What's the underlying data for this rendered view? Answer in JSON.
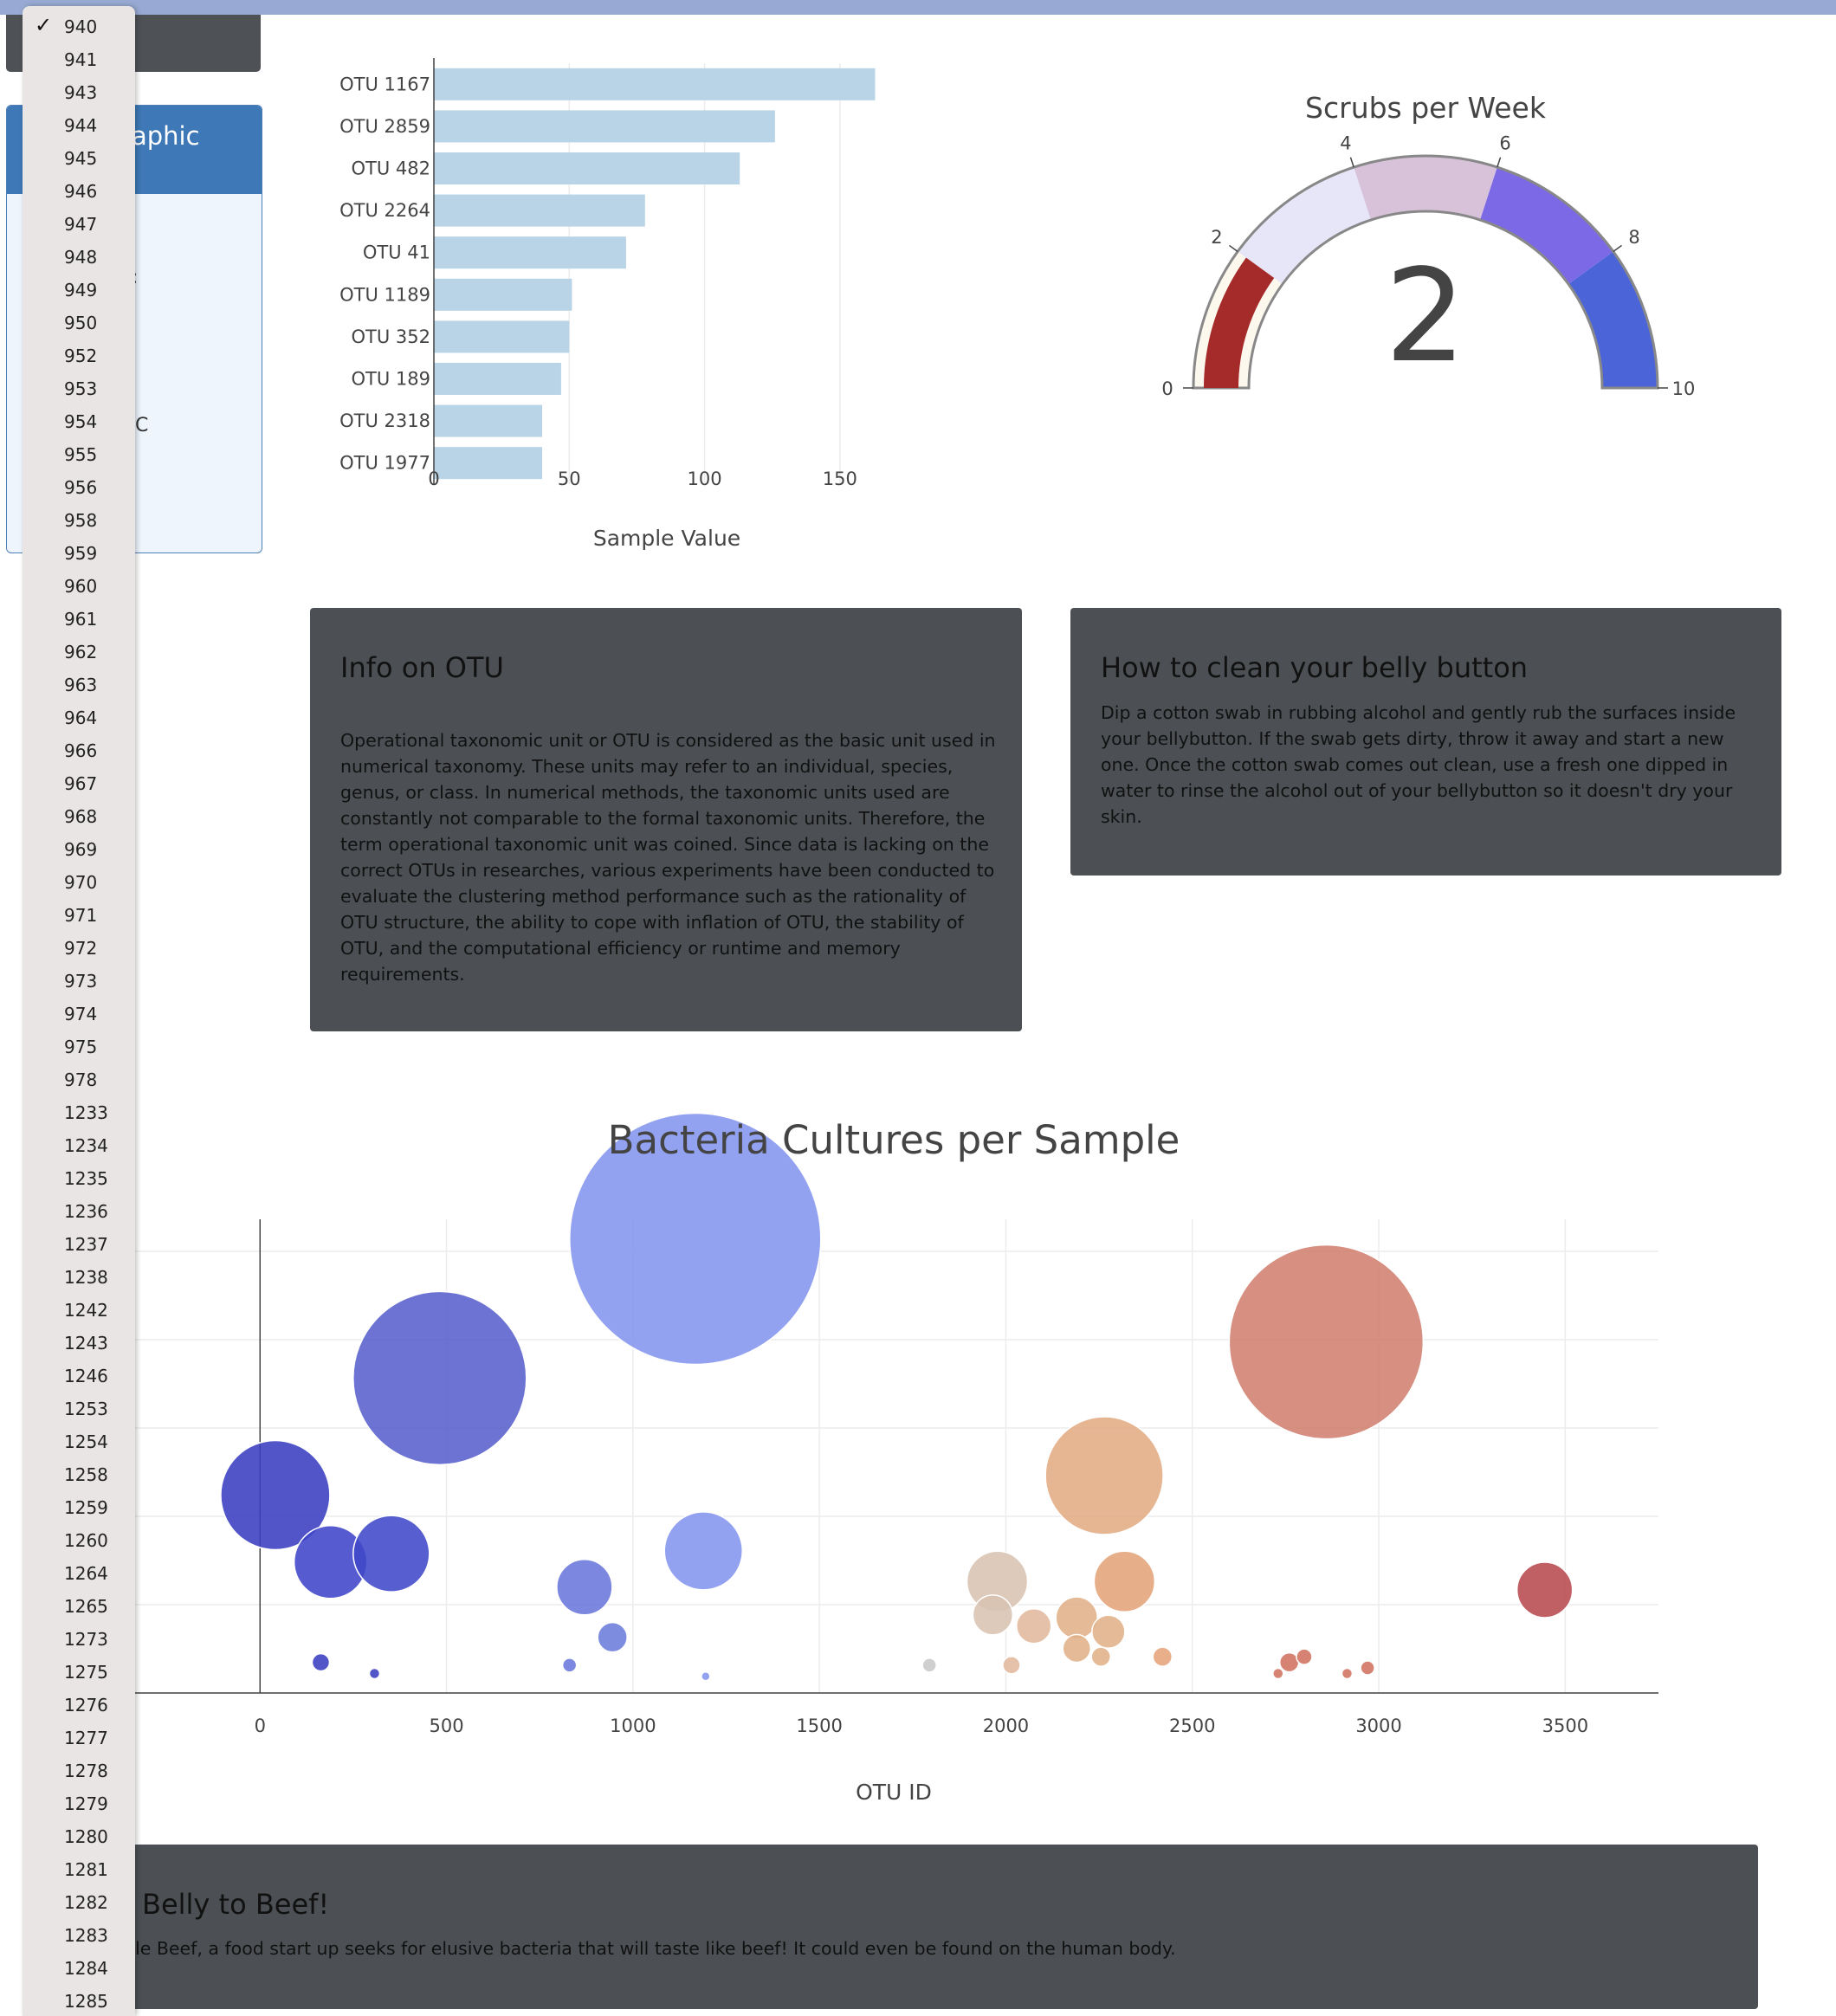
{
  "demographic": {
    "title_fragment": "aphic",
    "fragments": [
      ":",
      "C"
    ]
  },
  "dropdown": {
    "selected": "940",
    "options": [
      "940",
      "941",
      "943",
      "944",
      "945",
      "946",
      "947",
      "948",
      "949",
      "950",
      "952",
      "953",
      "954",
      "955",
      "956",
      "958",
      "959",
      "960",
      "961",
      "962",
      "963",
      "964",
      "966",
      "967",
      "968",
      "969",
      "970",
      "971",
      "972",
      "973",
      "974",
      "975",
      "978",
      "1233",
      "1234",
      "1235",
      "1236",
      "1237",
      "1238",
      "1242",
      "1243",
      "1246",
      "1253",
      "1254",
      "1258",
      "1259",
      "1260",
      "1264",
      "1265",
      "1273",
      "1275",
      "1276",
      "1277",
      "1278",
      "1279",
      "1280",
      "1281",
      "1282",
      "1283",
      "1284",
      "1285"
    ]
  },
  "bar_chart": {
    "xlabel": "Sample Value"
  },
  "gauge": {
    "title": "Scrubs per Week",
    "value_text": "2"
  },
  "bubble_chart": {
    "title": "Bacteria Cultures per Sample",
    "xlabel": "OTU ID"
  },
  "info_card": {
    "title": "Info on OTU",
    "body": "Operational taxonomic unit or OTU is considered as the basic unit used in numerical taxonomy. These units may refer to an individual, species, genus, or class. In numerical methods, the taxonomic units used are constantly not comparable to the formal taxonomic units. Therefore, the term operational taxonomic unit was coined. Since data is lacking on the correct OTUs in researches, various experiments have been conducted to evaluate the clustering method performance such as the rationality of OTU structure, the ability to cope with inflation of OTU, the stability of OTU, and the computational efficiency or runtime and memory requirements."
  },
  "clean_card": {
    "title": "How to clean your belly button",
    "body": "Dip a cotton swab in rubbing alcohol and gently rub the surfaces inside your bellybutton. If the swab gets dirty, throw it away and start a new one. Once the cotton swab comes out clean, use a fresh one dipped in water to rinse the alcohol out of your bellybutton so it doesn't dry your skin."
  },
  "bottom_card": {
    "title": "Belly to Beef!",
    "body": "le Beef, a food start up seeks for elusive bacteria that will taste like beef! It could even be found on the human body."
  },
  "chart_data": [
    {
      "type": "bar",
      "orientation": "horizontal",
      "categories": [
        "OTU 1167",
        "OTU 2859",
        "OTU 482",
        "OTU 2264",
        "OTU 41",
        "OTU 1189",
        "OTU 352",
        "OTU 189",
        "OTU 2318",
        "OTU 1977"
      ],
      "values": [
        163,
        126,
        113,
        78,
        71,
        51,
        50,
        47,
        40,
        40
      ],
      "xlabel": "Sample Value",
      "xlim": [
        0,
        175
      ],
      "xticks": [
        0,
        50,
        100,
        150
      ],
      "color": "#b9d4e6"
    },
    {
      "type": "gauge",
      "title": "Scrubs per Week",
      "value": 2,
      "range": [
        0,
        10
      ],
      "ticks": [
        0,
        2,
        4,
        6,
        8,
        10
      ],
      "steps": [
        {
          "range": [
            0,
            2
          ],
          "color": "#fcf8ed"
        },
        {
          "range": [
            2,
            4
          ],
          "color": "#e6e6f8"
        },
        {
          "range": [
            4,
            6
          ],
          "color": "#d8c2da"
        },
        {
          "range": [
            6,
            8
          ],
          "color": "#7b69e6"
        },
        {
          "range": [
            8,
            10
          ],
          "color": "#4b65d9"
        }
      ],
      "bar_color": "#a52a2a"
    },
    {
      "type": "scatter",
      "title": "Bacteria Cultures per Sample",
      "xlabel": "OTU ID",
      "xlim": [
        -335,
        3750
      ],
      "xticks": [
        0,
        500,
        1000,
        1500,
        2000,
        2500,
        3000,
        3500
      ],
      "ylim": [
        0,
        170
      ],
      "grid": true,
      "points": [
        {
          "x": 41,
          "y": 71,
          "r": 63,
          "c": "#3a3ec0"
        },
        {
          "x": 189,
          "y": 47,
          "r": 42,
          "c": "#3f46c8"
        },
        {
          "x": 352,
          "y": 50,
          "r": 44,
          "c": "#4048c8"
        },
        {
          "x": 482,
          "y": 113,
          "r": 100,
          "c": "#5860cc"
        },
        {
          "x": 870,
          "y": 38,
          "r": 32,
          "c": "#6a78dc"
        },
        {
          "x": 945,
          "y": 20,
          "r": 17,
          "c": "#6c7cdc"
        },
        {
          "x": 1167,
          "y": 163,
          "r": 145,
          "c": "#8495ee"
        },
        {
          "x": 1189,
          "y": 51,
          "r": 45,
          "c": "#8495ee"
        },
        {
          "x": 163,
          "y": 11,
          "r": 10,
          "c": "#3a3ec0"
        },
        {
          "x": 307,
          "y": 7,
          "r": 6,
          "c": "#3a3ec0"
        },
        {
          "x": 830,
          "y": 10,
          "r": 8,
          "c": "#6a78dc"
        },
        {
          "x": 1195,
          "y": 6,
          "r": 5,
          "c": "#8495ee"
        },
        {
          "x": 1795,
          "y": 10,
          "r": 8,
          "c": "#c8c8c8"
        },
        {
          "x": 1977,
          "y": 40,
          "r": 35,
          "c": "#d8c3b2"
        },
        {
          "x": 1965,
          "y": 28,
          "r": 23,
          "c": "#d8c3b2"
        },
        {
          "x": 2075,
          "y": 24,
          "r": 20,
          "c": "#e0b89c"
        },
        {
          "x": 2015,
          "y": 10,
          "r": 10,
          "c": "#e0b89c"
        },
        {
          "x": 2264,
          "y": 78,
          "r": 68,
          "c": "#e2ac84"
        },
        {
          "x": 2318,
          "y": 40,
          "r": 35,
          "c": "#e2a47a"
        },
        {
          "x": 2190,
          "y": 27,
          "r": 24,
          "c": "#e0b089"
        },
        {
          "x": 2275,
          "y": 22,
          "r": 19,
          "c": "#e0b089"
        },
        {
          "x": 2190,
          "y": 16,
          "r": 16,
          "c": "#e0b089"
        },
        {
          "x": 2255,
          "y": 13,
          "r": 11,
          "c": "#e0b089"
        },
        {
          "x": 2420,
          "y": 13,
          "r": 11,
          "c": "#e6a47a"
        },
        {
          "x": 2859,
          "y": 126,
          "r": 112,
          "c": "#d0806e"
        },
        {
          "x": 2760,
          "y": 11,
          "r": 11,
          "c": "#d07260"
        },
        {
          "x": 2800,
          "y": 13,
          "r": 9,
          "c": "#d07260"
        },
        {
          "x": 2730,
          "y": 7,
          "r": 6,
          "c": "#d07260"
        },
        {
          "x": 2915,
          "y": 7,
          "r": 6,
          "c": "#d07260"
        },
        {
          "x": 2970,
          "y": 9,
          "r": 8,
          "c": "#d07260"
        },
        {
          "x": 3445,
          "y": 37,
          "r": 32,
          "c": "#b84a4e"
        }
      ]
    }
  ]
}
